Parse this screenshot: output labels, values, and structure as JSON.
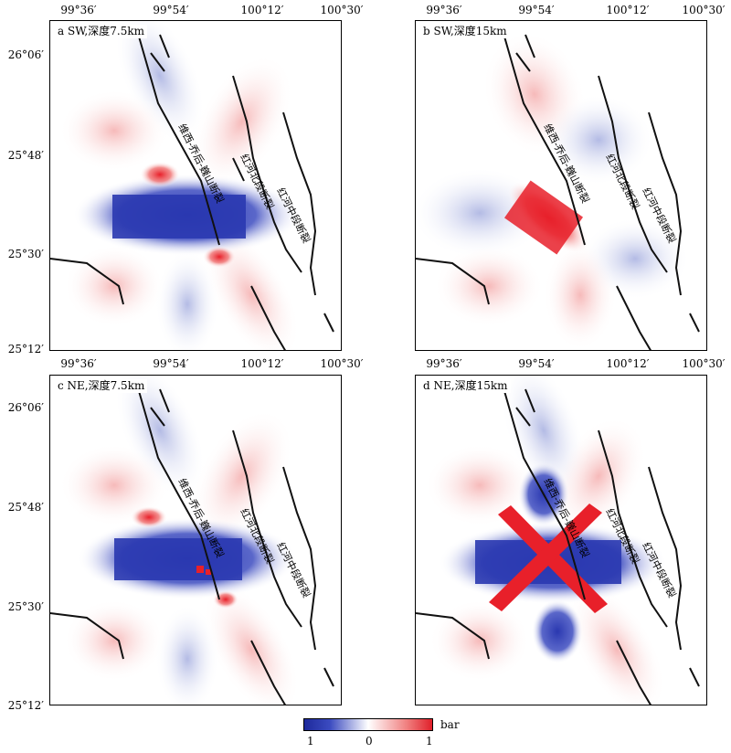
{
  "longitude_ticks": [
    "99°36′",
    "99°54′",
    "100°12′",
    "100°30′"
  ],
  "latitude_ticks": [
    "26°06′",
    "25°48′",
    "25°30′",
    "25°12′"
  ],
  "panels": [
    {
      "label": "a SW,深度7.5km",
      "pattern": "sw7"
    },
    {
      "label": "b SW,深度15km",
      "pattern": "sw15"
    },
    {
      "label": "c NE,深度7.5km",
      "pattern": "ne7"
    },
    {
      "label": "d NE,深度15km",
      "pattern": "ne15"
    }
  ],
  "fault_labels": {
    "weixi_qiaohou": "维西-乔后-巍山断裂",
    "honghe_north": "红河北段断裂",
    "honghe_middle": "红河中段断裂"
  },
  "colorbar": {
    "unit": "bar",
    "tick_min": "1",
    "tick_mid": "0",
    "tick_max": "1",
    "colors": {
      "negative": "#2a38b0",
      "zero": "#ffffff",
      "positive": "#e8202a"
    }
  }
}
